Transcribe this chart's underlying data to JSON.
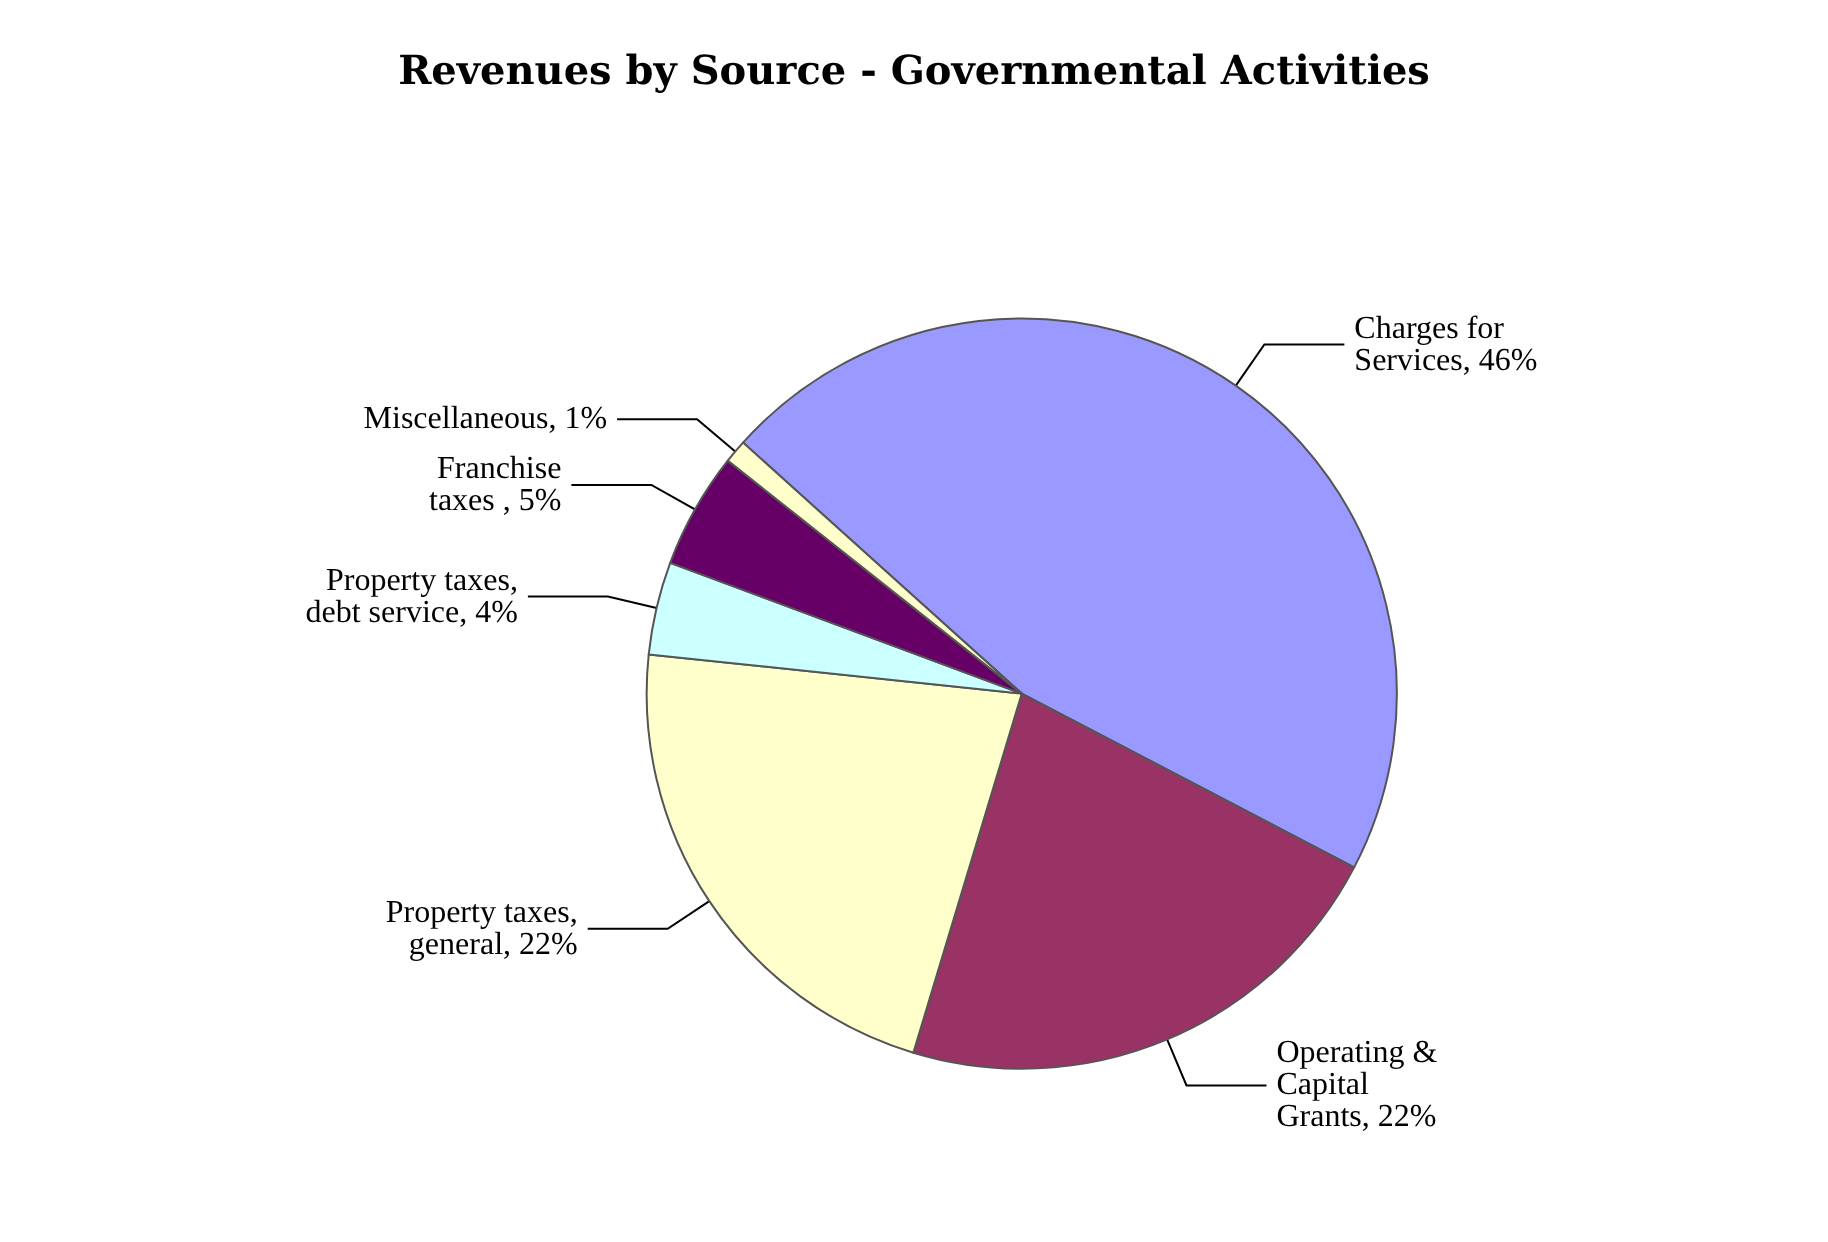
{
  "chart_data": {
    "type": "pie",
    "title": "Revenues by Source - Governmental Activities",
    "categories": [
      "Charges for Services",
      "Operating & Capital Grants",
      "Property taxes, general",
      "Property taxes, debt service",
      "Franchise taxes ",
      "Miscellaneous"
    ],
    "values": [
      46,
      22,
      22,
      4,
      5,
      1
    ],
    "value_labels": [
      "46%",
      "22%",
      "22%",
      "4%",
      "5%",
      "1%"
    ],
    "colors": [
      "#9999ff",
      "#993366",
      "#ffffcc",
      "#ccffff",
      "#660066",
      "#ffffcc"
    ],
    "legend": false
  }
}
